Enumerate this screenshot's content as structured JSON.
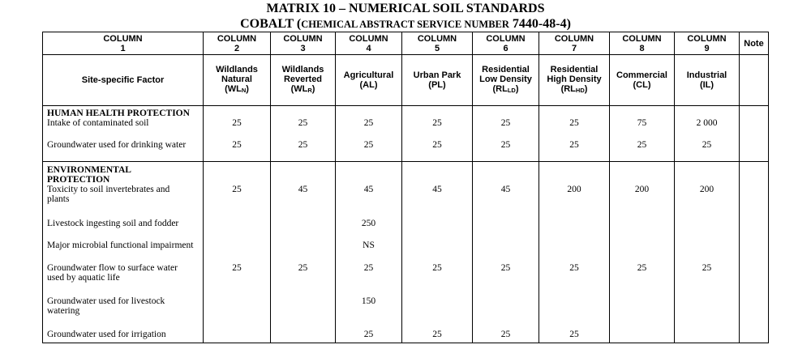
{
  "title": "MATRIX 10 – NUMERICAL SOIL STANDARDS",
  "subtitle": {
    "lead": "COBALT (",
    "smallcaps": "CHEMICAL ABSTRACT SERVICE NUMBER",
    "tail": " 7440-48-4)"
  },
  "columns": [
    {
      "line1": "COLUMN",
      "line2": "1"
    },
    {
      "line1": "COLUMN",
      "line2": "2"
    },
    {
      "line1": "COLUMN",
      "line2": "3"
    },
    {
      "line1": "COLUMN",
      "line2": "4"
    },
    {
      "line1": "COLUMN",
      "line2": "5"
    },
    {
      "line1": "COLUMN",
      "line2": "6"
    },
    {
      "line1": "COLUMN",
      "line2": "7"
    },
    {
      "line1": "COLUMN",
      "line2": "8"
    },
    {
      "line1": "COLUMN",
      "line2": "9"
    },
    {
      "line1": "Note",
      "line2": ""
    }
  ],
  "landuses": [
    {
      "l1": "Site-specific Factor",
      "l2": "",
      "l3": "",
      "code": "",
      "sub": "",
      "end": ""
    },
    {
      "l1": "Wildlands",
      "l2": "Natural",
      "l3": "",
      "code": "(WL",
      "sub": "N",
      "end": ")"
    },
    {
      "l1": "Wildlands",
      "l2": "Reverted",
      "l3": "",
      "code": "(WL",
      "sub": "R",
      "end": ")"
    },
    {
      "l1": "Agricultural",
      "l2": "",
      "l3": "",
      "code": "(AL)",
      "sub": "",
      "end": ""
    },
    {
      "l1": "Urban Park",
      "l2": "",
      "l3": "",
      "code": "(PL)",
      "sub": "",
      "end": ""
    },
    {
      "l1": "Residential",
      "l2": "Low Density",
      "l3": "",
      "code": "(RL",
      "sub": "LD",
      "end": ")"
    },
    {
      "l1": "Residential",
      "l2": "High Density",
      "l3": "",
      "code": "(RL",
      "sub": "HD",
      "end": ")"
    },
    {
      "l1": "Commercial",
      "l2": "",
      "l3": "",
      "code": "(CL)",
      "sub": "",
      "end": ""
    },
    {
      "l1": "Industrial",
      "l2": "",
      "l3": "",
      "code": "(IL)",
      "sub": "",
      "end": ""
    },
    {
      "l1": "",
      "l2": "",
      "l3": "",
      "code": "",
      "sub": "",
      "end": ""
    }
  ],
  "human_health": {
    "heading": "HUMAN HEALTH  PROTECTION",
    "rows": [
      {
        "factor": [
          "Intake of contaminated soil"
        ],
        "values": [
          "25",
          "25",
          "25",
          "25",
          "25",
          "25",
          "75",
          "2 000"
        ]
      },
      {
        "factor": [
          "Groundwater used for drinking water"
        ],
        "values": [
          "25",
          "25",
          "25",
          "25",
          "25",
          "25",
          "25",
          "25"
        ]
      }
    ]
  },
  "environmental": {
    "heading": [
      "ENVIRONMENTAL",
      "PROTECTION"
    ],
    "rows": [
      {
        "factor": [
          "Toxicity to soil invertebrates and",
          "plants"
        ],
        "values": [
          "25",
          "45",
          "45",
          "45",
          "45",
          "200",
          "200",
          "200"
        ]
      },
      {
        "factor": [
          "Livestock ingesting soil and fodder"
        ],
        "values": [
          "",
          "",
          "250",
          "",
          "",
          "",
          "",
          ""
        ]
      },
      {
        "factor": [
          "Major microbial functional impairment"
        ],
        "values": [
          "",
          "",
          "NS",
          "",
          "",
          "",
          "",
          ""
        ]
      },
      {
        "factor": [
          "Groundwater flow to surface water",
          "used by aquatic life"
        ],
        "values": [
          "25",
          "25",
          "25",
          "25",
          "25",
          "25",
          "25",
          "25"
        ]
      },
      {
        "factor": [
          "Groundwater used for livestock",
          "watering"
        ],
        "values": [
          "",
          "",
          "150",
          "",
          "",
          "",
          "",
          ""
        ]
      },
      {
        "factor": [
          "Groundwater used for irrigation"
        ],
        "values": [
          "",
          "",
          "25",
          "25",
          "25",
          "25",
          "",
          ""
        ]
      }
    ]
  }
}
